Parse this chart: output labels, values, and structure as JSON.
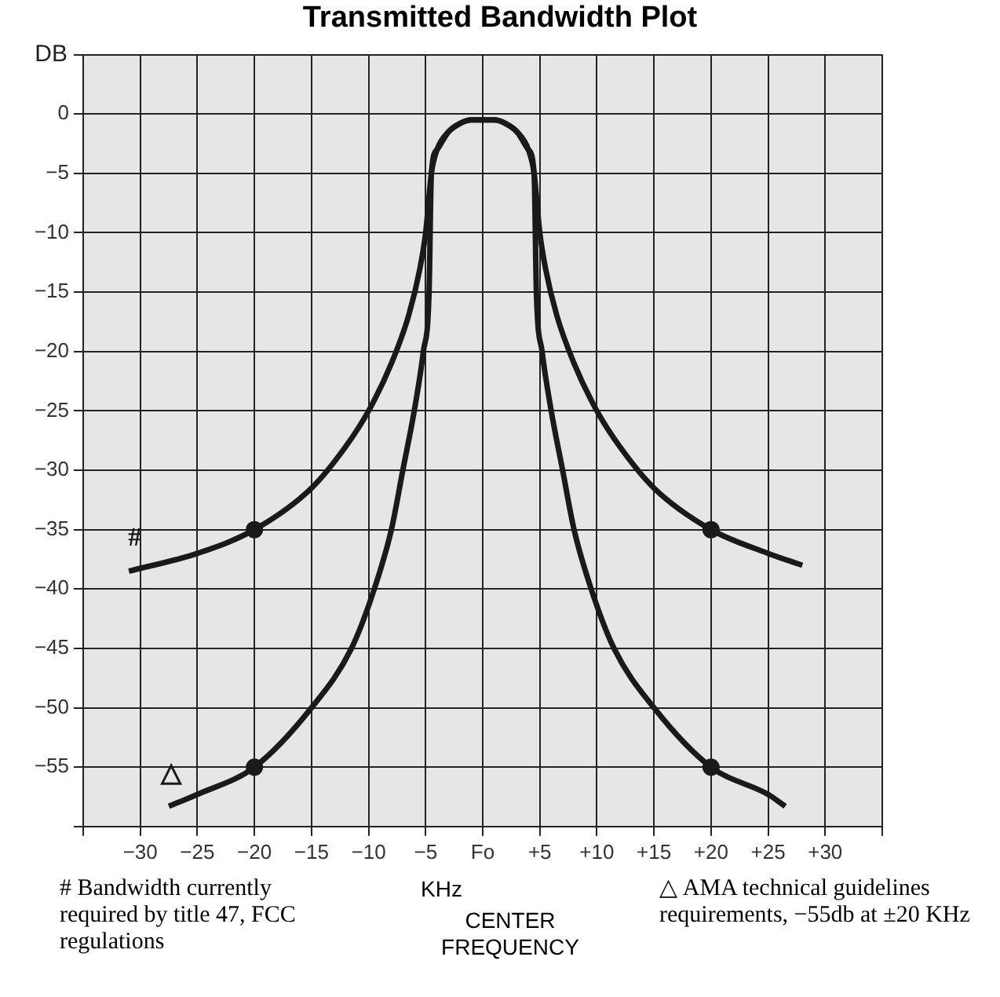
{
  "chart_data": {
    "type": "line",
    "title": "Transmitted Bandwidth Plot",
    "xlabel": "KHz",
    "ylabel": "DB",
    "annotations": [
      "# Bandwidth currently required by title 47, FCC regulations",
      "CENTER FREQUENCY",
      "△ AMA technical guidelines requirements, −55db at ±20 KHz"
    ],
    "xlim": [
      -35,
      35
    ],
    "ylim": [
      -60,
      5
    ],
    "xticks": [
      {
        "value": -30,
        "label": "−30"
      },
      {
        "value": -25,
        "label": "−25"
      },
      {
        "value": -20,
        "label": "−20"
      },
      {
        "value": -15,
        "label": "−15"
      },
      {
        "value": -10,
        "label": "−10"
      },
      {
        "value": -5,
        "label": "−5"
      },
      {
        "value": 0,
        "label": "Fo"
      },
      {
        "value": 5,
        "label": "+5"
      },
      {
        "value": 10,
        "label": "+10"
      },
      {
        "value": 15,
        "label": "+15"
      },
      {
        "value": 20,
        "label": "+20"
      },
      {
        "value": 25,
        "label": "+25"
      },
      {
        "value": 30,
        "label": "+30"
      }
    ],
    "yticks": [
      0,
      {
        "value": -5,
        "label": "−5"
      },
      {
        "value": -10,
        "label": "−10"
      },
      {
        "value": -15,
        "label": "−15"
      },
      {
        "value": -20,
        "label": "−20"
      },
      {
        "value": -25,
        "label": "−25"
      },
      {
        "value": -30,
        "label": "−30"
      },
      {
        "value": -35,
        "label": "−35"
      },
      {
        "value": -40,
        "label": "−40"
      },
      {
        "value": -45,
        "label": "−45"
      },
      {
        "value": -50,
        "label": "−50"
      },
      {
        "value": -55,
        "label": "−55"
      }
    ],
    "grid": true,
    "legend": false,
    "marker": "none",
    "line_style": "solid",
    "series": [
      {
        "name": "#",
        "color": "#1a1a1a",
        "x": [
          -31,
          -25,
          -20,
          -15,
          -12,
          -10,
          -8,
          -6.5,
          -5.5,
          -5,
          -4.5,
          -4,
          -3,
          -2,
          -1,
          0,
          1,
          2,
          3,
          4,
          4.5,
          5,
          5.5,
          6.5,
          8,
          10,
          12,
          15,
          20,
          25,
          28
        ],
        "values": [
          -38.5,
          -37,
          -35,
          -31.5,
          -28,
          -25,
          -21,
          -17,
          -13,
          -10,
          -5,
          -3,
          -1.5,
          -0.8,
          -0.5,
          -0.5,
          -0.5,
          -0.8,
          -1.5,
          -3,
          -5,
          -10,
          -13,
          -17,
          -21,
          -25,
          -28,
          -31.5,
          -35,
          -37,
          -38
        ]
      },
      {
        "name": "△",
        "color": "#1a1a1a",
        "x": [
          -27.5,
          -25,
          -20,
          -15,
          -11.5,
          -9.5,
          -8,
          -7,
          -6,
          -5.2,
          -4.7,
          -4.5,
          -4,
          -3,
          -2,
          -1,
          0,
          1,
          2,
          3,
          4,
          4.5,
          4.7,
          5.2,
          6,
          7,
          8,
          9.5,
          11.5,
          15,
          20,
          25,
          26.5
        ],
        "values": [
          -58.3,
          -57.3,
          -55,
          -50,
          -45,
          -40,
          -35,
          -30,
          -25,
          -20,
          -15,
          -5,
          -3,
          -1.5,
          -0.8,
          -0.5,
          -0.5,
          -0.5,
          -0.8,
          -1.5,
          -3,
          -5,
          -15,
          -20,
          -25,
          -30,
          -35,
          -40,
          -45,
          -50,
          -55,
          -57.3,
          -58.3
        ]
      },
      {
        "type": "scatter",
        "color": "#1a1a1a",
        "marker": "circle",
        "x": [
          -20,
          20,
          -20,
          20
        ],
        "values": [
          -35,
          -35,
          -55,
          -55
        ]
      }
    ]
  }
}
